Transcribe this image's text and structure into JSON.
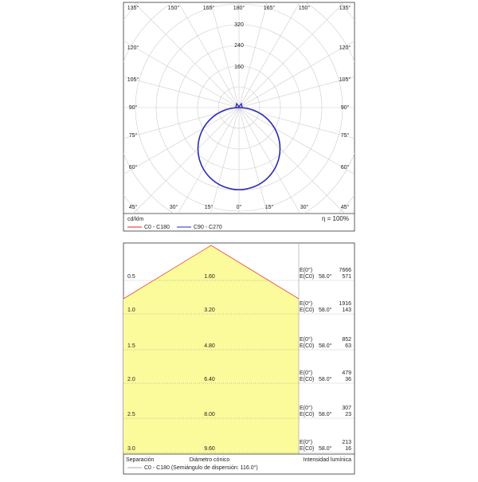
{
  "polar": {
    "top_labels": [
      "135°",
      "150°",
      "165°",
      "180°",
      "165°",
      "150°",
      "135°"
    ],
    "bottom_labels": [
      "45°",
      "30°",
      "15°",
      "0°",
      "15°",
      "30°",
      "45°"
    ],
    "left_labels": [
      "120°",
      "105°",
      "90°",
      "75°",
      "60°"
    ],
    "right_labels": [
      "120°",
      "105°",
      "90°",
      "75°",
      "60°"
    ],
    "radial_labels": [
      "320",
      "240",
      "160"
    ],
    "unit": "cd/klm",
    "legend": [
      "C0 - C180",
      "C90 - C270"
    ],
    "efficiency": "η = 100%"
  },
  "cone": {
    "rows": [
      {
        "distance": "0.5",
        "diameter": "1.60",
        "e0_label": "E(0°)",
        "ec0_label": "E(C0)",
        "angle": "58.0°",
        "e0": "7666",
        "ec0": "571"
      },
      {
        "distance": "1.0",
        "diameter": "3.20",
        "e0_label": "E(0°)",
        "ec0_label": "E(C0)",
        "angle": "58.0°",
        "e0": "1916",
        "ec0": "143"
      },
      {
        "distance": "1.5",
        "diameter": "4.80",
        "e0_label": "E(0°)",
        "ec0_label": "E(C0)",
        "angle": "58.0°",
        "e0": "852",
        "ec0": "63"
      },
      {
        "distance": "2.0",
        "diameter": "6.40",
        "e0_label": "E(0°)",
        "ec0_label": "E(C0)",
        "angle": "58.0°",
        "e0": "479",
        "ec0": "36"
      },
      {
        "distance": "2.5",
        "diameter": "8.00",
        "e0_label": "E(0°)",
        "ec0_label": "E(C0)",
        "angle": "58.0°",
        "e0": "307",
        "ec0": "23"
      },
      {
        "distance": "3.0",
        "diameter": "9.60",
        "e0_label": "E(0°)",
        "ec0_label": "E(C0)",
        "angle": "58.0°",
        "e0": "213",
        "ec0": "16"
      }
    ],
    "footer": [
      "Separación",
      "Diámetro cónico",
      "Intensidad lumínica"
    ],
    "legend": "C0 - C180 (Semiángulo de dispersión: 116.0°)"
  }
}
